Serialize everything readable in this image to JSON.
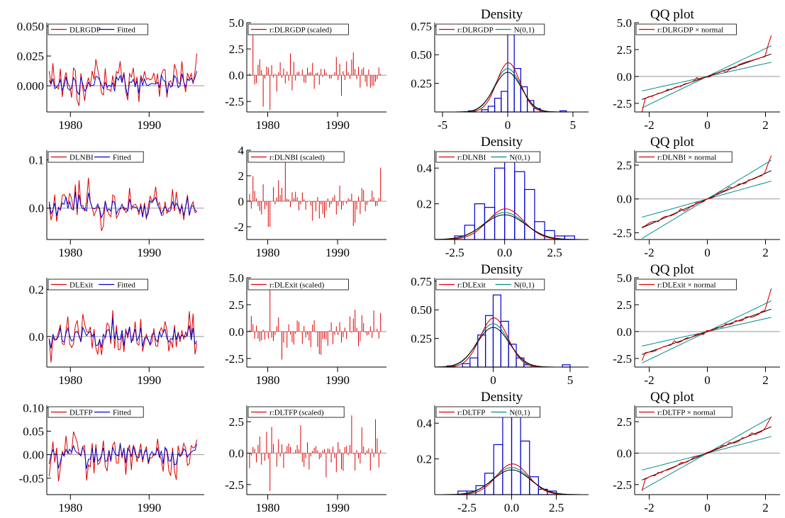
{
  "colors": {
    "actual": "#dd0000",
    "fitted": "#0000cc",
    "normal": "#008c8c",
    "density_black": "#000000",
    "zero_line": "#999999",
    "axis": "#000000"
  },
  "chart_data": [
    {
      "panel": "fit",
      "row": 0,
      "type": "line",
      "title": "",
      "legend": [
        {
          "label": "DLRGDP",
          "color": "#dd0000"
        },
        {
          "label": "Fitted",
          "color": "#0000cc"
        }
      ],
      "xlim": [
        1977,
        1997
      ],
      "ylim": [
        -0.022,
        0.053
      ],
      "xticks": [
        1980,
        1990
      ],
      "xtick_labels": [
        "1980",
        "1990"
      ],
      "yticks": [
        0,
        0.025,
        0.05
      ],
      "ytick_labels": [
        "0.000",
        "0.025",
        "0.050"
      ],
      "zero_line": 0
    },
    {
      "panel": "resid",
      "row": 0,
      "type": "bar",
      "title": "",
      "legend": [
        {
          "label": "r:DLRGDP (scaled)",
          "color": "#dd0000"
        }
      ],
      "xlim": [
        1977,
        1997
      ],
      "ylim": [
        -3.5,
        5.0
      ],
      "xticks": [
        1980,
        1990
      ],
      "xtick_labels": [
        "1980",
        "1990"
      ],
      "yticks": [
        -2.5,
        0,
        2.5,
        5.0
      ],
      "ytick_labels": [
        "-2.5",
        "0.0",
        "2.5",
        "5.0"
      ],
      "zero_line": 0,
      "spikes": [
        [
          1978.0,
          3.8
        ],
        [
          1979.3,
          -3.0
        ],
        [
          1980.3,
          -3.3
        ]
      ]
    },
    {
      "panel": "density",
      "row": 0,
      "type": "histogram",
      "title": "Density",
      "legend": [
        {
          "label": "r:DLRGDP",
          "color": "#dd0000"
        },
        {
          "label": "N(0,1)",
          "color": "#008c8c"
        }
      ],
      "xlim": [
        -5.6,
        6.2
      ],
      "ylim": [
        0,
        0.78
      ],
      "xticks": [
        -5,
        0,
        5
      ],
      "xtick_labels": [
        "-5",
        "0",
        "5"
      ],
      "yticks": [
        0.25,
        0.5,
        0.75
      ],
      "ytick_labels": [
        "0.25",
        "0.50",
        "0.75"
      ],
      "bins": [
        [
          -3.0,
          0.01
        ],
        [
          -2.0,
          0.02
        ],
        [
          -1.5,
          0.05
        ],
        [
          -1.0,
          0.12
        ],
        [
          -0.5,
          0.18
        ],
        [
          0.0,
          0.72
        ],
        [
          0.5,
          0.38
        ],
        [
          1.0,
          0.22
        ],
        [
          1.5,
          0.1
        ],
        [
          2.0,
          0.03
        ],
        [
          4.0,
          0.01
        ]
      ],
      "bin_width": 0.5,
      "kernel_scale": 0.95
    },
    {
      "panel": "qq",
      "row": 0,
      "type": "line",
      "title": "QQ plot",
      "legend": [
        {
          "label": "r:DLRGDP × normal",
          "color": "#dd0000"
        }
      ],
      "xlim": [
        -2.5,
        2.5
      ],
      "ylim": [
        -3.3,
        5.0
      ],
      "xticks": [
        -2,
        0,
        2
      ],
      "xtick_labels": [
        "-2",
        "0",
        "2"
      ],
      "yticks": [
        -2.5,
        0,
        2.5,
        5.0
      ],
      "ytick_labels": [
        "-2.5",
        "0.0",
        "2.5",
        "5.0"
      ],
      "zero_line": 0,
      "tail_up": 3.8,
      "tail_down": -3.3
    },
    {
      "panel": "fit",
      "row": 1,
      "type": "line",
      "title": "",
      "legend": [
        {
          "label": "DLNBI",
          "color": "#dd0000"
        },
        {
          "label": "Fitted",
          "color": "#0000cc"
        }
      ],
      "xlim": [
        1977,
        1997
      ],
      "ylim": [
        -0.065,
        0.12
      ],
      "xticks": [
        1980,
        1990
      ],
      "xtick_labels": [
        "1980",
        "1990"
      ],
      "yticks": [
        0,
        0.1
      ],
      "ytick_labels": [
        "0.0",
        "0.1"
      ],
      "zero_line": 0
    },
    {
      "panel": "resid",
      "row": 1,
      "type": "bar",
      "title": "",
      "legend": [
        {
          "label": "r:DLNBI (scaled)",
          "color": "#dd0000"
        }
      ],
      "xlim": [
        1977,
        1997
      ],
      "ylim": [
        -3.0,
        4.0
      ],
      "xticks": [
        1980,
        1990
      ],
      "xtick_labels": [
        "1980",
        "1990"
      ],
      "yticks": [
        -2,
        0,
        2,
        4
      ],
      "ytick_labels": [
        "-2",
        "0",
        "2",
        "4"
      ],
      "zero_line": 0,
      "spikes": [
        [
          1982.5,
          3.2
        ],
        [
          1980.2,
          -2.0
        ]
      ]
    },
    {
      "panel": "density",
      "row": 1,
      "type": "histogram",
      "title": "Density",
      "legend": [
        {
          "label": "r:DLNBI",
          "color": "#dd0000"
        },
        {
          "label": "N(0,1)",
          "color": "#008c8c"
        }
      ],
      "xlim": [
        -3.5,
        4.2
      ],
      "ylim": [
        0,
        0.5
      ],
      "xticks": [
        -2.5,
        0,
        2.5
      ],
      "xtick_labels": [
        "-2.5",
        "0.0",
        "2.5"
      ],
      "yticks": [
        0.2,
        0.4
      ],
      "ytick_labels": [
        "0.2",
        "0.4"
      ],
      "bins": [
        [
          -2.5,
          0.02
        ],
        [
          -2.0,
          0.08
        ],
        [
          -1.5,
          0.2
        ],
        [
          -1.0,
          0.18
        ],
        [
          -0.5,
          0.4
        ],
        [
          0.0,
          0.45
        ],
        [
          0.5,
          0.38
        ],
        [
          1.0,
          0.28
        ],
        [
          1.5,
          0.1
        ],
        [
          2.0,
          0.05
        ],
        [
          2.5,
          0.02
        ],
        [
          3.0,
          0.02
        ]
      ],
      "bin_width": 0.5,
      "kernel_scale": 0.38
    },
    {
      "panel": "qq",
      "row": 1,
      "type": "line",
      "title": "QQ plot",
      "legend": [
        {
          "label": "r:DLNBI × normal",
          "color": "#dd0000"
        }
      ],
      "xlim": [
        -2.5,
        2.5
      ],
      "ylim": [
        -3.0,
        3.6
      ],
      "xticks": [
        -2,
        0,
        2
      ],
      "xtick_labels": [
        "-2",
        "0",
        "2"
      ],
      "yticks": [
        -2.5,
        0,
        2.5
      ],
      "ytick_labels": [
        "-2.5",
        "0.0",
        "2.5"
      ],
      "zero_line": 0,
      "tail_up": 3.2,
      "tail_down": -2.1
    },
    {
      "panel": "fit",
      "row": 2,
      "type": "line",
      "title": "",
      "legend": [
        {
          "label": "DLExit",
          "color": "#dd0000"
        },
        {
          "label": "Fitted",
          "color": "#0000cc"
        }
      ],
      "xlim": [
        1977,
        1997
      ],
      "ylim": [
        -0.13,
        0.25
      ],
      "xticks": [
        1980,
        1990
      ],
      "xtick_labels": [
        "1980",
        "1990"
      ],
      "yticks": [
        0,
        0.2
      ],
      "ytick_labels": [
        "0.0",
        "0.2"
      ],
      "zero_line": 0
    },
    {
      "panel": "resid",
      "row": 2,
      "type": "bar",
      "title": "",
      "legend": [
        {
          "label": "r:DLExit (scaled)",
          "color": "#dd0000"
        }
      ],
      "xlim": [
        1977,
        1997
      ],
      "ylim": [
        -3.3,
        5.0
      ],
      "xticks": [
        1980,
        1990
      ],
      "xtick_labels": [
        "1980",
        "1990"
      ],
      "yticks": [
        -2.5,
        0,
        2.5,
        5.0
      ],
      "ytick_labels": [
        "-2.5",
        "0.0",
        "2.5",
        "5.0"
      ],
      "zero_line": 0,
      "spikes": [
        [
          1980.4,
          4.0
        ],
        [
          1982.0,
          -2.6
        ]
      ]
    },
    {
      "panel": "density",
      "row": 2,
      "type": "histogram",
      "title": "Density",
      "legend": [
        {
          "label": "r:DLExit",
          "color": "#dd0000"
        },
        {
          "label": "N(0,1)",
          "color": "#008c8c"
        }
      ],
      "xlim": [
        -3.8,
        6.2
      ],
      "ylim": [
        0,
        0.78
      ],
      "xticks": [
        0,
        5
      ],
      "xtick_labels": [
        "0",
        "5"
      ],
      "yticks": [
        0.25,
        0.5,
        0.75
      ],
      "ytick_labels": [
        "0.25",
        "0.50",
        "0.75"
      ],
      "bins": [
        [
          -3.0,
          0.01
        ],
        [
          -2.0,
          0.03
        ],
        [
          -1.5,
          0.08
        ],
        [
          -1.0,
          0.28
        ],
        [
          -0.5,
          0.45
        ],
        [
          0.0,
          0.63
        ],
        [
          0.5,
          0.4
        ],
        [
          1.0,
          0.2
        ],
        [
          1.5,
          0.08
        ],
        [
          2.0,
          0.02
        ],
        [
          4.5,
          0.02
        ]
      ],
      "bin_width": 0.5,
      "kernel_scale": 0.95
    },
    {
      "panel": "qq",
      "row": 2,
      "type": "line",
      "title": "QQ plot",
      "legend": [
        {
          "label": "r:DLExit × normal",
          "color": "#dd0000"
        }
      ],
      "xlim": [
        -2.5,
        2.5
      ],
      "ylim": [
        -3.3,
        5.0
      ],
      "xticks": [
        -2,
        0,
        2
      ],
      "xtick_labels": [
        "-2",
        "0",
        "2"
      ],
      "yticks": [
        -2.5,
        0,
        2.5,
        5.0
      ],
      "ytick_labels": [
        "-2.5",
        "0.0",
        "2.5",
        "5.0"
      ],
      "zero_line": 0,
      "tail_up": 4.0,
      "tail_down": -2.7
    },
    {
      "panel": "fit",
      "row": 3,
      "type": "line",
      "title": "",
      "legend": [
        {
          "label": "DLTFP",
          "color": "#dd0000"
        },
        {
          "label": "Fitted",
          "color": "#0000cc"
        }
      ],
      "xlim": [
        1977,
        1997
      ],
      "ylim": [
        -0.085,
        0.105
      ],
      "xticks": [
        1980,
        1990
      ],
      "xtick_labels": [
        "1980",
        "1990"
      ],
      "yticks": [
        -0.05,
        0,
        0.05,
        0.1
      ],
      "ytick_labels": [
        "-0.05",
        "0.00",
        "0.05",
        "0.10"
      ],
      "zero_line": 0
    },
    {
      "panel": "resid",
      "row": 3,
      "type": "bar",
      "title": "",
      "legend": [
        {
          "label": "r:DLTFP (scaled)",
          "color": "#dd0000"
        }
      ],
      "xlim": [
        1977,
        1997
      ],
      "ylim": [
        -3.3,
        3.8
      ],
      "xticks": [
        1980,
        1990
      ],
      "xtick_labels": [
        "1980",
        "1990"
      ],
      "yticks": [
        -2.5,
        0,
        2.5
      ],
      "ytick_labels": [
        "-2.5",
        "0.0",
        "2.5"
      ],
      "zero_line": 0,
      "spikes": [
        [
          1992.0,
          3.0
        ],
        [
          1980.3,
          -3.0
        ]
      ]
    },
    {
      "panel": "density",
      "row": 3,
      "type": "histogram",
      "title": "Density",
      "legend": [
        {
          "label": "r:DLTFP",
          "color": "#dd0000"
        },
        {
          "label": "N(0,1)",
          "color": "#008c8c"
        }
      ],
      "xlim": [
        -4.3,
        4.3
      ],
      "ylim": [
        0,
        0.5
      ],
      "xticks": [
        -2.5,
        0,
        2.5
      ],
      "xtick_labels": [
        "-2.5",
        "0.0",
        "2.5"
      ],
      "yticks": [
        0.2,
        0.4
      ],
      "ytick_labels": [
        "0.2",
        "0.4"
      ],
      "bins": [
        [
          -3.0,
          0.02
        ],
        [
          -2.5,
          0.02
        ],
        [
          -2.0,
          0.05
        ],
        [
          -1.5,
          0.12
        ],
        [
          -1.0,
          0.28
        ],
        [
          -0.5,
          0.46
        ],
        [
          0.0,
          0.46
        ],
        [
          0.5,
          0.3
        ],
        [
          1.0,
          0.1
        ],
        [
          1.5,
          0.03
        ],
        [
          2.0,
          0.02
        ]
      ],
      "bin_width": 0.5,
      "kernel_scale": 0.38
    },
    {
      "panel": "qq",
      "row": 3,
      "type": "line",
      "title": "QQ plot",
      "legend": [
        {
          "label": "r:DLTFP × normal",
          "color": "#dd0000"
        }
      ],
      "xlim": [
        -2.5,
        2.5
      ],
      "ylim": [
        -3.3,
        3.8
      ],
      "xticks": [
        -2,
        0,
        2
      ],
      "xtick_labels": [
        "-2",
        "0",
        "2"
      ],
      "yticks": [
        -2.5,
        0,
        2.5
      ],
      "ytick_labels": [
        "-2.5",
        "0.0",
        "2.5"
      ],
      "zero_line": 0,
      "tail_up": 2.9,
      "tail_down": -3.0
    }
  ]
}
